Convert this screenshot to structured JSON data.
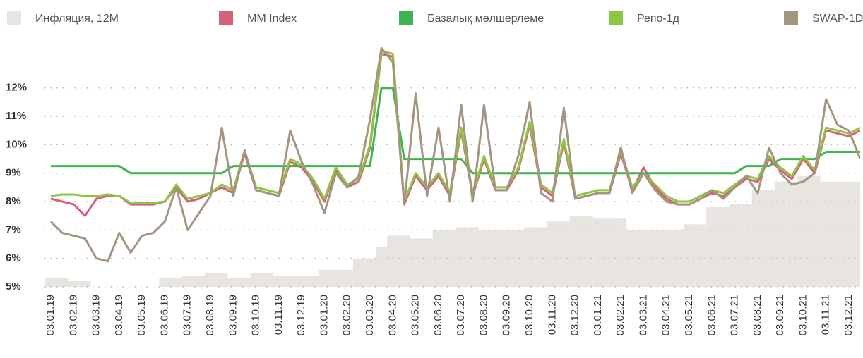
{
  "chart_data": {
    "type": "line",
    "categories": [
      "03.01.19",
      null,
      "03.02.19",
      null,
      "03.03.19",
      null,
      "03.04.19",
      null,
      "03.05.19",
      null,
      "03.06.19",
      null,
      "03.07.19",
      null,
      "03.08.19",
      null,
      "03.09.19",
      null,
      "03.10.19",
      null,
      "03.11.19",
      null,
      "03.12.19",
      null,
      "03.01.20",
      null,
      "03.02.20",
      null,
      "03.03.20",
      null,
      "03.04.20",
      null,
      "03.05.20",
      null,
      "03.06.20",
      null,
      "03.07.20",
      null,
      "03.08.20",
      null,
      "03.09.20",
      null,
      "03.10.20",
      null,
      "03.11.20",
      null,
      "03.12.20",
      null,
      "03.01.21",
      null,
      "03.02.21",
      null,
      "03.03.21",
      null,
      "03.04.21",
      null,
      "03.05.21",
      null,
      "03.06.21",
      null,
      "03.07.21",
      null,
      "03.08.21",
      null,
      "03.09.21",
      null,
      "03.10.21",
      null,
      "03.11.21",
      null,
      "03.12.21",
      null
    ],
    "series": [
      {
        "name": "Инфляция, 12М",
        "color": "#e8e4df",
        "kind": "area",
        "values": [
          5.3,
          5.3,
          5.2,
          5.2,
          5.0,
          5.0,
          5.0,
          5.0,
          5.0,
          5.0,
          5.3,
          5.3,
          5.4,
          5.4,
          5.5,
          5.5,
          5.3,
          5.3,
          5.5,
          5.5,
          5.4,
          5.4,
          5.4,
          5.4,
          5.6,
          5.6,
          5.6,
          6.0,
          6.0,
          6.4,
          6.8,
          6.8,
          6.7,
          6.7,
          7.0,
          7.0,
          7.1,
          7.1,
          7.0,
          7.0,
          7.0,
          7.0,
          7.1,
          7.1,
          7.3,
          7.3,
          7.5,
          7.5,
          7.4,
          7.4,
          7.4,
          7.0,
          7.0,
          7.0,
          7.0,
          7.0,
          7.2,
          7.2,
          7.8,
          7.8,
          7.9,
          7.9,
          8.4,
          8.4,
          8.7,
          8.7,
          8.9,
          8.9,
          8.7,
          8.7,
          8.7,
          8.7
        ]
      },
      {
        "name": "MM Index",
        "color": "#d4607a",
        "values": [
          8.1,
          8.0,
          7.9,
          7.5,
          8.1,
          8.2,
          8.2,
          7.9,
          7.9,
          7.9,
          8.0,
          8.5,
          8.0,
          8.1,
          8.3,
          8.5,
          8.3,
          9.7,
          8.4,
          8.3,
          8.2,
          9.4,
          9.2,
          8.7,
          8.0,
          9.1,
          8.5,
          8.7,
          9.9,
          13.2,
          13.1,
          7.9,
          8.9,
          8.4,
          8.9,
          8.2,
          10.5,
          8.2,
          9.5,
          8.4,
          8.4,
          9.1,
          10.7,
          8.5,
          8.2,
          10.1,
          8.1,
          8.2,
          8.3,
          8.3,
          9.7,
          8.4,
          9.2,
          8.5,
          8.1,
          7.9,
          7.9,
          8.1,
          8.3,
          8.2,
          8.5,
          8.8,
          8.7,
          9.5,
          9.1,
          8.8,
          9.5,
          9.0,
          10.5,
          10.4,
          10.3,
          10.5
        ]
      },
      {
        "name": "Базалық мөлшерлеме",
        "color": "#3fb34f",
        "values": [
          9.25,
          9.25,
          9.25,
          9.25,
          9.25,
          9.25,
          9.25,
          9.0,
          9.0,
          9.0,
          9.0,
          9.0,
          9.0,
          9.0,
          9.0,
          9.0,
          9.25,
          9.25,
          9.25,
          9.25,
          9.25,
          9.25,
          9.25,
          9.25,
          9.25,
          9.25,
          9.25,
          9.25,
          9.25,
          12.0,
          12.0,
          9.5,
          9.5,
          9.5,
          9.5,
          9.5,
          9.5,
          9.0,
          9.0,
          9.0,
          9.0,
          9.0,
          9.0,
          9.0,
          9.0,
          9.0,
          9.0,
          9.0,
          9.0,
          9.0,
          9.0,
          9.0,
          9.0,
          9.0,
          9.0,
          9.0,
          9.0,
          9.0,
          9.0,
          9.0,
          9.0,
          9.25,
          9.25,
          9.25,
          9.5,
          9.5,
          9.5,
          9.5,
          9.75,
          9.75,
          9.75,
          9.75
        ]
      },
      {
        "name": "Репо-1д",
        "color": "#8dc63f",
        "values": [
          8.2,
          8.25,
          8.25,
          8.2,
          8.2,
          8.25,
          8.2,
          7.95,
          7.95,
          7.95,
          8.0,
          8.6,
          8.1,
          8.2,
          8.3,
          8.6,
          8.4,
          9.8,
          8.5,
          8.4,
          8.3,
          9.5,
          9.3,
          8.8,
          8.1,
          9.2,
          8.6,
          8.8,
          10.0,
          13.3,
          13.2,
          8.0,
          9.0,
          8.5,
          9.0,
          8.3,
          10.6,
          8.3,
          9.6,
          8.5,
          8.5,
          9.2,
          10.8,
          8.6,
          8.3,
          10.2,
          8.2,
          8.3,
          8.4,
          8.4,
          9.8,
          8.5,
          9.0,
          8.6,
          8.2,
          8.0,
          8.0,
          8.2,
          8.4,
          8.3,
          8.6,
          8.9,
          8.8,
          9.6,
          9.2,
          8.9,
          9.6,
          9.1,
          10.6,
          10.5,
          10.4,
          10.6
        ]
      },
      {
        "name": "SWAP-1D",
        "color": "#a39580",
        "values": [
          7.3,
          6.9,
          6.8,
          6.7,
          6.0,
          5.9,
          6.9,
          6.2,
          6.8,
          6.9,
          7.3,
          8.5,
          7.0,
          7.6,
          8.2,
          10.6,
          8.2,
          9.8,
          8.4,
          8.3,
          8.2,
          10.5,
          9.4,
          8.6,
          7.6,
          9.0,
          8.5,
          8.9,
          10.9,
          13.4,
          12.9,
          7.9,
          11.8,
          8.2,
          10.6,
          8.0,
          11.4,
          8.0,
          11.4,
          8.4,
          8.4,
          9.6,
          11.5,
          8.3,
          8.0,
          11.3,
          8.1,
          8.2,
          8.3,
          8.3,
          9.9,
          8.3,
          9.0,
          8.4,
          8.0,
          7.9,
          7.9,
          8.1,
          8.4,
          8.1,
          8.5,
          8.9,
          8.3,
          9.9,
          9.0,
          8.6,
          8.7,
          9.0,
          11.6,
          10.7,
          10.5,
          9.5
        ]
      }
    ],
    "ylim": [
      5,
      14.4
    ],
    "yticks": [
      {
        "value": 5,
        "label": "5%"
      },
      {
        "value": 6,
        "label": "6%"
      },
      {
        "value": 7,
        "label": "7%"
      },
      {
        "value": 8,
        "label": "8%"
      },
      {
        "value": 9,
        "label": "9%"
      },
      {
        "value": 10,
        "label": "10%"
      },
      {
        "value": 11,
        "label": "11%"
      },
      {
        "value": 12,
        "label": "12%"
      }
    ],
    "grid": true
  }
}
